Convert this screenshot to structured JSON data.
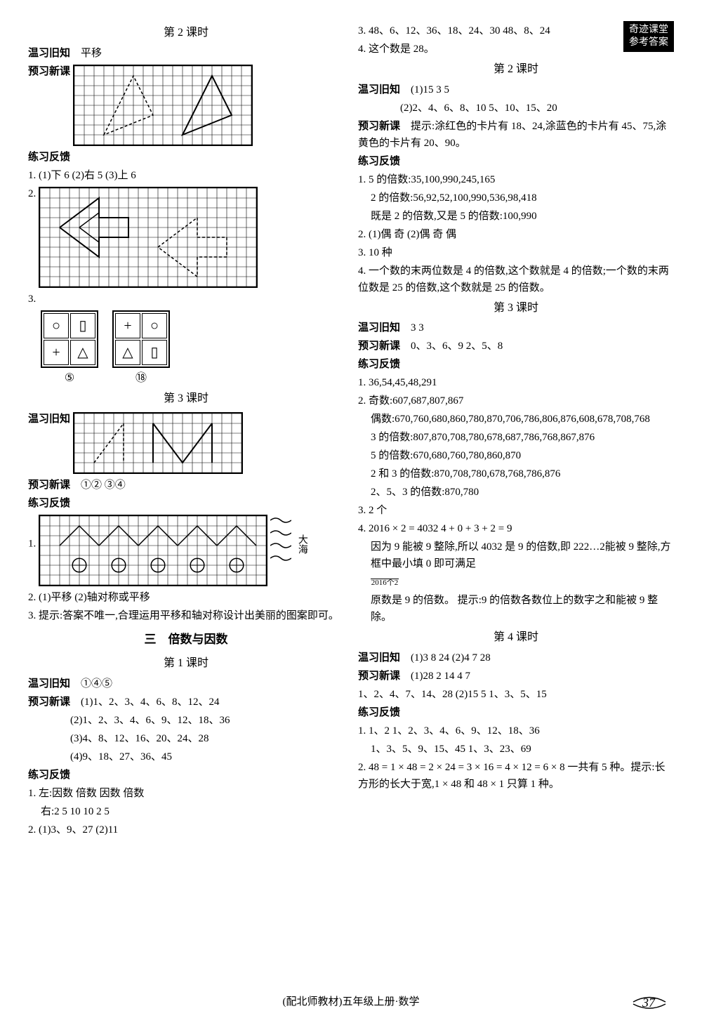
{
  "badge": {
    "line1": "奇迹课堂",
    "line2": "参考答案"
  },
  "left": {
    "lesson2_title": "第 2 课时",
    "review_label": "温习旧知",
    "review_text": "平移",
    "preview_label": "预习新课",
    "practice_label": "练习反馈",
    "p1": "1. (1)下  6   (2)右  5   (3)上  6",
    "p2": "2.",
    "p3": "3.",
    "shape_labels": {
      "a": "⑤",
      "b": "⑱"
    },
    "lesson3_title": "第 3 课时",
    "l3_review_label": "温习旧知",
    "l3_preview_label": "预习新课",
    "l3_preview_text": "①②   ③④",
    "l3_practice_label": "练习反馈",
    "l3_p1": "1.",
    "sea": "大海",
    "l3_p2": "2. (1)平移   (2)轴对称或平移",
    "l3_p3": "3. 提示:答案不唯一,合理运用平移和轴对称设计出美丽的图案即可。",
    "unit3_title": "三　倍数与因数",
    "u3_lesson1_title": "第 1 课时",
    "u3_review_label": "温习旧知",
    "u3_review_text": "①④⑤",
    "u3_preview_label": "预习新课",
    "u3_preview_1": "(1)1、2、3、4、6、8、12、24",
    "u3_preview_2": "(2)1、2、3、4、6、9、12、18、36",
    "u3_preview_3": "(3)4、8、12、16、20、24、28",
    "u3_preview_4": "(4)9、18、27、36、45",
    "u3_practice_label": "练习反馈",
    "u3_p1": "1. 左:因数  倍数  因数  倍数",
    "u3_p1b": "右:2  5  10  10  2  5",
    "u3_p2": "2. (1)3、9、27   (2)11"
  },
  "right": {
    "r3": "3. 48、6、12、36、18、24、30   48、8、24",
    "r4": "4. 这个数是 28。",
    "lesson2_title": "第 2 课时",
    "review_label": "温习旧知",
    "review_1": "(1)15   3   5",
    "review_2": "(2)2、4、6、8、10   5、10、15、20",
    "preview_label": "预习新课",
    "preview_text": "提示:涂红色的卡片有 18、24,涂蓝色的卡片有 45、75,涂黄色的卡片有 20、90。",
    "practice_label": "练习反馈",
    "p1a": "1. 5 的倍数:35,100,990,245,165",
    "p1b": "2 的倍数:56,92,52,100,990,536,98,418",
    "p1c": "既是 2 的倍数,又是 5 的倍数:100,990",
    "p2": "2. (1)偶  奇   (2)偶  奇  偶",
    "p3": "3. 10 种",
    "p4": "4. 一个数的末两位数是 4 的倍数,这个数就是 4 的倍数;一个数的末两位数是 25 的倍数,这个数就是 25 的倍数。",
    "lesson3_title": "第 3 课时",
    "l3_review_label": "温习旧知",
    "l3_review_text": "3   3",
    "l3_preview_label": "预习新课",
    "l3_preview_text": "0、3、6、9   2、5、8",
    "l3_practice_label": "练习反馈",
    "l3_p1": "1. 36,54,45,48,291",
    "l3_p2a": "2. 奇数:607,687,807,867",
    "l3_p2b": "偶数:670,760,680,860,780,870,706,786,806,876,608,678,708,768",
    "l3_p2c": "3 的倍数:807,870,708,780,678,687,786,768,867,876",
    "l3_p2d": "5 的倍数:670,680,760,780,860,870",
    "l3_p2e": "2 和 3 的倍数:870,708,780,678,768,786,876",
    "l3_p2f": "2、5、3 的倍数:870,780",
    "l3_p3": "3. 2 个",
    "l3_p4a": "4. 2016 × 2 = 4032   4 + 0 + 3 + 2 = 9",
    "l3_p4b": "因为 9 能被 9 整除,所以 4032 是 9 的倍数,即 222…2能被 9 整除,方框中最小填 0 即可满足",
    "l3_p4c_brace": "2016个2",
    "l3_p4d": "原数是 9 的倍数。  提示:9 的倍数各数位上的数字之和能被 9 整除。",
    "lesson4_title": "第 4 课时",
    "l4_review_label": "温习旧知",
    "l4_review_text": "(1)3   8   24   (2)4   7   28",
    "l4_preview_label": "预习新课",
    "l4_preview_1": "(1)28   2   14   4   7",
    "l4_preview_2": "1、2、4、7、14、28   (2)15   5   1、3、5、15",
    "l4_practice_label": "练习反馈",
    "l4_p1a": "1. 1、2      1、2、3、4、6、9、12、18、36",
    "l4_p1b": "1、3、5、9、15、45      1、3、23、69",
    "l4_p2": "2. 48 = 1 × 48 = 2 × 24 = 3 × 16 = 4 × 12 = 6 × 8   一共有 5 种。提示:长方形的长大于宽,1 × 48 和 48 × 1 只算 1 种。"
  },
  "footer": "(配北师教材)五年级上册·数学",
  "pagenum": "37",
  "grids": {
    "cell": 14,
    "stroke": "#000",
    "thin_stroke": "#666"
  }
}
